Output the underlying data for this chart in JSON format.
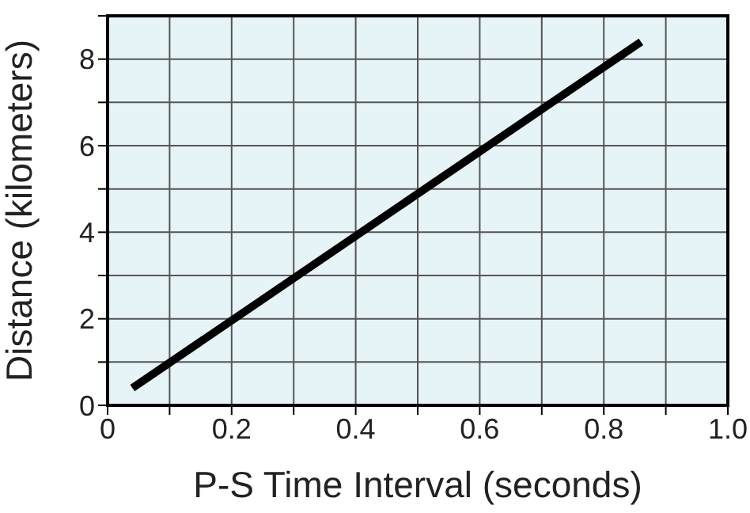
{
  "chart_data": {
    "type": "line",
    "xlabel": "P-S Time Interval (seconds)",
    "ylabel": "Distance (kilometers)",
    "x": [
      0.04,
      0.86
    ],
    "series": [
      {
        "color": "#000000",
        "values": [
          0.4,
          8.4
        ]
      }
    ],
    "xlim": [
      0,
      1
    ],
    "ylim": [
      0,
      9
    ],
    "xticks": [
      0,
      {
        "value": 0.1,
        "label": null
      },
      {
        "value": 0.2,
        "label": "0.2"
      },
      {
        "value": 0.3,
        "label": null
      },
      {
        "value": 0.4,
        "label": "0.4"
      },
      {
        "value": 0.5,
        "label": null
      },
      {
        "value": 0.6,
        "label": "0.6"
      },
      {
        "value": 0.7,
        "label": null
      },
      {
        "value": 0.8,
        "label": "0.8"
      },
      {
        "value": 0.9,
        "label": null
      },
      {
        "value": 1,
        "label": "1.0"
      }
    ],
    "yticks": [
      0,
      {
        "value": 1,
        "label": null
      },
      2,
      {
        "value": 3,
        "label": null
      },
      4,
      {
        "value": 5,
        "label": null
      },
      6,
      {
        "value": 7,
        "label": null
      },
      8,
      {
        "value": 9,
        "label": null
      }
    ],
    "grid": true,
    "marker": "none",
    "line_style": "solid"
  }
}
